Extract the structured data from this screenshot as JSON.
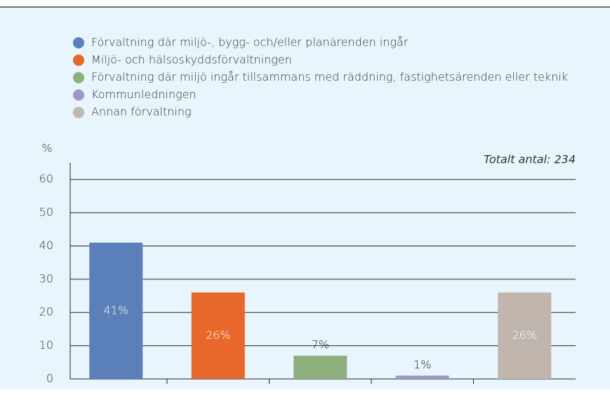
{
  "chart_data": {
    "type": "bar",
    "y_axis_label": "%",
    "annotation": "Totalt antal: 234",
    "categories": [
      "Förvaltning där miljö-, bygg- och/eller planärenden ingår",
      "Miljö- och hälsoskyddsförvaltningen",
      "Förvaltning där miljö ingår tillsammans med räddning, fastighetsärenden eller teknik",
      "Kommunledningen",
      "Annan förvaltning"
    ],
    "values": [
      41,
      26,
      7,
      1,
      26
    ],
    "value_labels": [
      "41%",
      "26%",
      "7%",
      "1%",
      "26%"
    ],
    "colors": [
      "#5b7fb9",
      "#e8672a",
      "#8fae7e",
      "#9d98c9",
      "#c0b6ae"
    ],
    "ylim": [
      0,
      65
    ],
    "yticks": [
      0,
      10,
      20,
      30,
      40,
      50,
      60
    ],
    "grid": true
  }
}
